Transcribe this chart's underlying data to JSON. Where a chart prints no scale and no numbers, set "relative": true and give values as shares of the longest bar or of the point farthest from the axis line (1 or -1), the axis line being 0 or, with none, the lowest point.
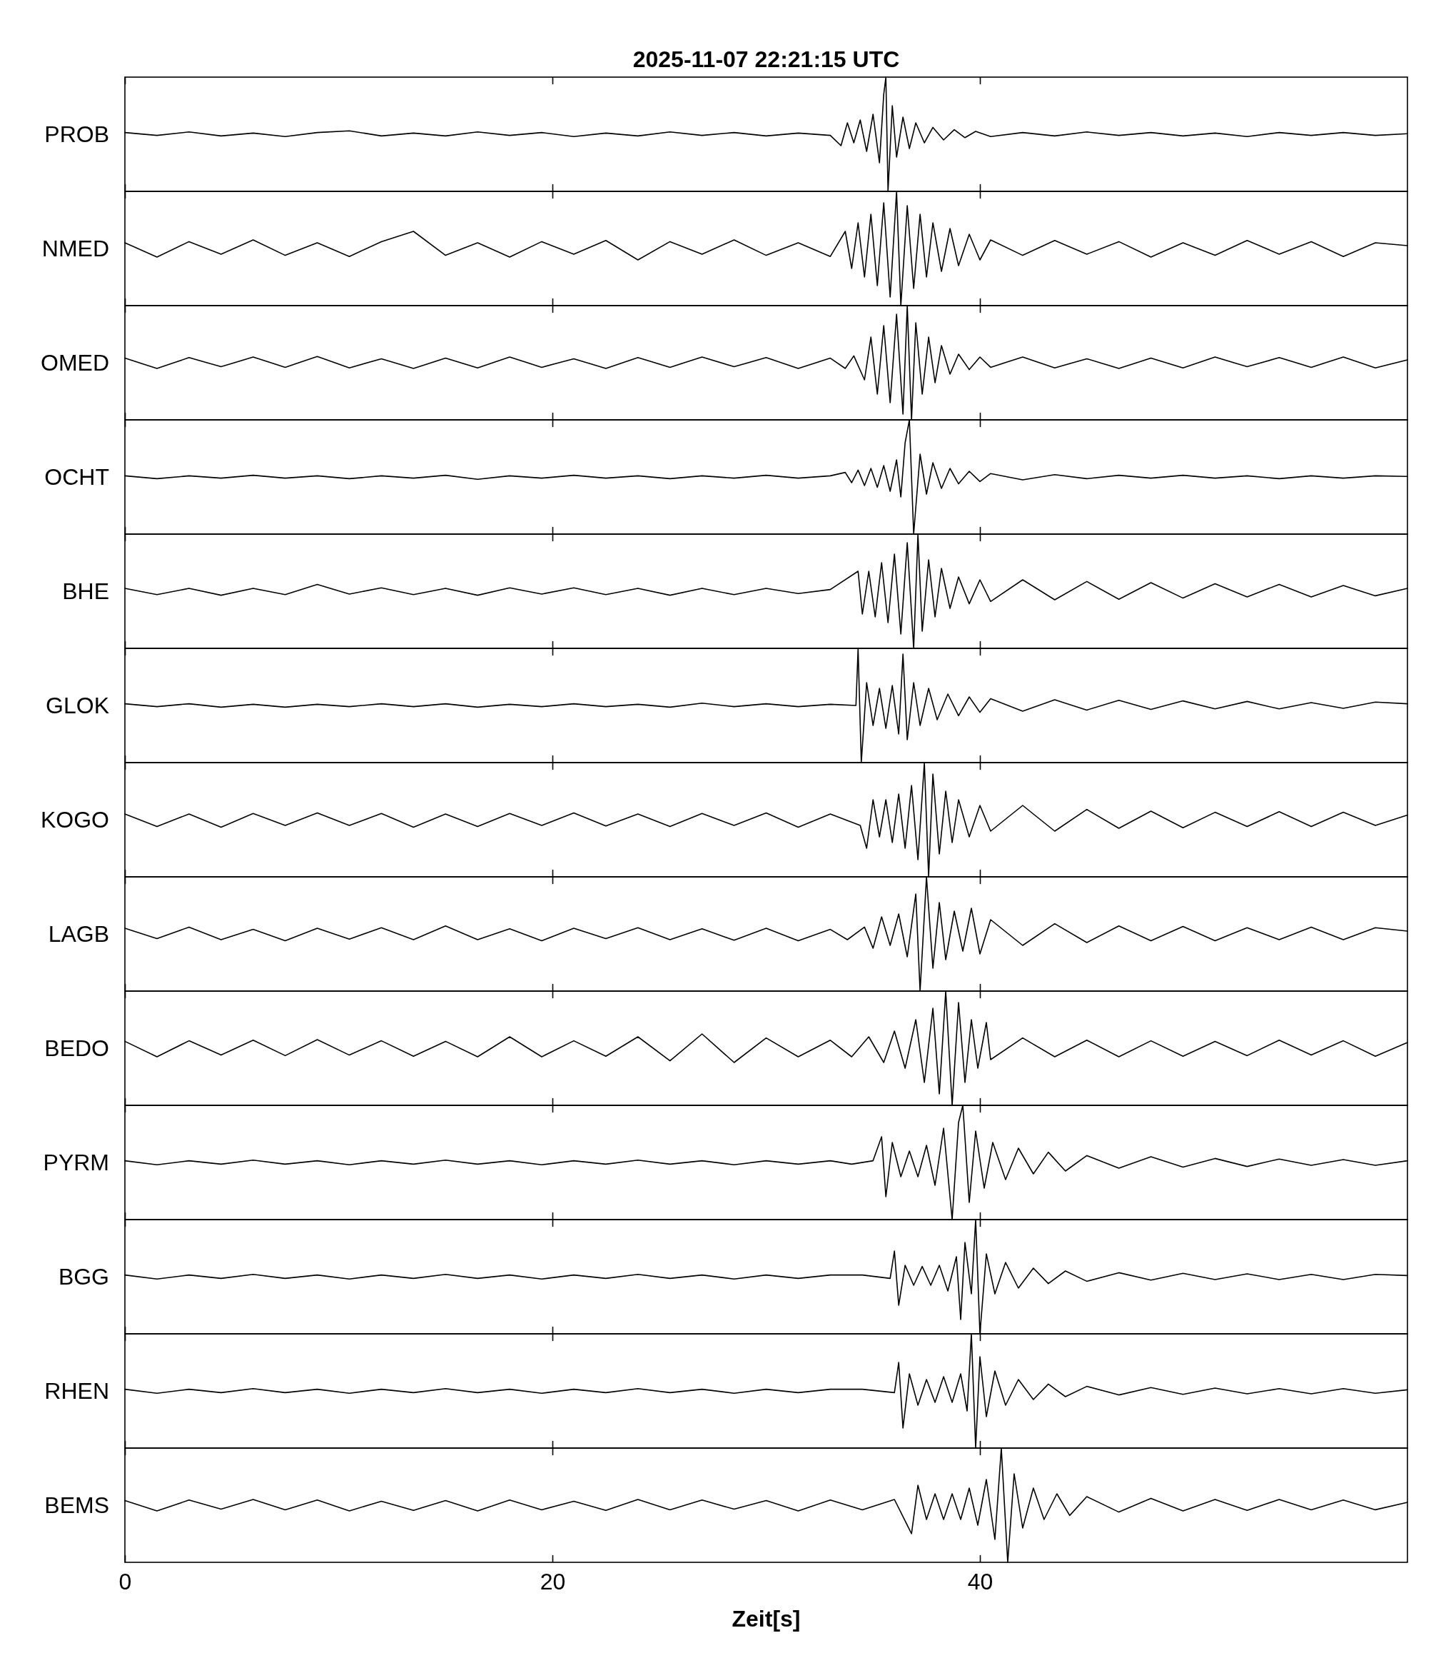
{
  "chart_data": [
    {
      "type": "line",
      "title": "2025-11-07  22:21:15 UTC",
      "ylabel": "PROB",
      "relative": true,
      "xlim": [
        0,
        60
      ],
      "xticks": [
        0,
        20,
        40
      ],
      "tick_labels": false,
      "color": "#000000",
      "x": [
        0,
        1.5,
        3,
        4.5,
        6,
        7.5,
        9,
        10.5,
        12,
        13.5,
        15,
        16.5,
        18,
        19.5,
        21,
        22.5,
        24,
        25.5,
        27,
        28.5,
        30,
        31.5,
        33,
        33.5,
        33.8,
        34.1,
        34.4,
        34.7,
        35,
        35.3,
        35.5,
        35.6,
        35.7,
        35.9,
        36.1,
        36.4,
        36.7,
        37,
        37.4,
        37.8,
        38.3,
        38.8,
        39.3,
        39.8,
        40.5,
        42,
        43.5,
        45,
        46.5,
        48,
        49.5,
        51,
        52.5,
        54,
        55.5,
        57,
        58.5,
        60
      ],
      "values": [
        0.515,
        0.49,
        0.52,
        0.485,
        0.51,
        0.48,
        0.515,
        0.53,
        0.485,
        0.51,
        0.485,
        0.52,
        0.49,
        0.515,
        0.48,
        0.51,
        0.485,
        0.52,
        0.49,
        0.515,
        0.485,
        0.51,
        0.49,
        0.4,
        0.6,
        0.425,
        0.625,
        0.35,
        0.675,
        0.25,
        0.85,
        1,
        0,
        0.75,
        0.3,
        0.65,
        0.375,
        0.6,
        0.425,
        0.56,
        0.45,
        0.54,
        0.47,
        0.525,
        0.48,
        0.515,
        0.485,
        0.52,
        0.49,
        0.515,
        0.485,
        0.51,
        0.48,
        0.515,
        0.49,
        0.515,
        0.49,
        0.505
      ]
    },
    {
      "type": "line",
      "ylabel": "NMED",
      "relative": true,
      "xlim": [
        0,
        60
      ],
      "xticks": [
        0,
        20,
        40
      ],
      "tick_labels": false,
      "color": "#000000",
      "x": [
        0,
        1.5,
        3,
        4.5,
        6,
        7.5,
        9,
        10.5,
        12,
        13.5,
        15,
        16.5,
        18,
        19.5,
        21,
        22.5,
        24,
        25.5,
        27,
        28.5,
        30,
        31.5,
        33,
        33.7,
        34,
        34.3,
        34.6,
        34.9,
        35.2,
        35.5,
        35.8,
        36.1,
        36.3,
        36.6,
        36.9,
        37.2,
        37.5,
        37.8,
        38.2,
        38.6,
        39,
        39.5,
        40,
        40.5,
        42,
        43.5,
        45,
        46.5,
        48,
        49.5,
        51,
        52.5,
        54,
        55.5,
        57,
        58.5,
        60
      ],
      "values": [
        0.55,
        0.425,
        0.56,
        0.45,
        0.575,
        0.44,
        0.55,
        0.43,
        0.56,
        0.65,
        0.44,
        0.55,
        0.425,
        0.56,
        0.45,
        0.57,
        0.4,
        0.56,
        0.45,
        0.575,
        0.44,
        0.55,
        0.43,
        0.65,
        0.325,
        0.725,
        0.25,
        0.8,
        0.175,
        0.9,
        0.075,
        1,
        0,
        0.875,
        0.15,
        0.8,
        0.25,
        0.725,
        0.3,
        0.675,
        0.35,
        0.625,
        0.4,
        0.575,
        0.44,
        0.57,
        0.45,
        0.56,
        0.425,
        0.55,
        0.44,
        0.57,
        0.45,
        0.56,
        0.43,
        0.55,
        0.525
      ]
    },
    {
      "type": "line",
      "ylabel": "OMED",
      "relative": true,
      "xlim": [
        0,
        60
      ],
      "xticks": [
        0,
        20,
        40
      ],
      "tick_labels": false,
      "color": "#000000",
      "x": [
        0,
        1.5,
        3,
        4.5,
        6,
        7.5,
        9,
        10.5,
        12,
        13.5,
        15,
        16.5,
        18,
        19.5,
        21,
        22.5,
        24,
        25.5,
        27,
        28.5,
        30,
        31.5,
        33,
        33.7,
        34.1,
        34.6,
        34.9,
        35.2,
        35.5,
        35.8,
        36.1,
        36.4,
        36.6,
        36.8,
        37,
        37.3,
        37.6,
        37.9,
        38.2,
        38.6,
        39,
        39.5,
        40,
        40.5,
        42,
        43.5,
        45,
        46.5,
        48,
        49.5,
        51,
        52.5,
        54,
        55.5,
        57,
        58.5,
        60
      ],
      "values": [
        0.54,
        0.45,
        0.545,
        0.465,
        0.55,
        0.46,
        0.555,
        0.455,
        0.535,
        0.45,
        0.54,
        0.455,
        0.55,
        0.46,
        0.535,
        0.45,
        0.545,
        0.46,
        0.55,
        0.465,
        0.545,
        0.45,
        0.54,
        0.45,
        0.56,
        0.35,
        0.725,
        0.225,
        0.825,
        0.15,
        0.925,
        0.05,
        1,
        0,
        0.85,
        0.225,
        0.725,
        0.325,
        0.65,
        0.4,
        0.575,
        0.44,
        0.55,
        0.46,
        0.55,
        0.455,
        0.535,
        0.45,
        0.54,
        0.455,
        0.55,
        0.465,
        0.545,
        0.46,
        0.55,
        0.455,
        0.525
      ]
    },
    {
      "type": "line",
      "ylabel": "OCHT",
      "relative": true,
      "xlim": [
        0,
        60
      ],
      "xticks": [
        0,
        20,
        40
      ],
      "tick_labels": false,
      "color": "#000000",
      "x": [
        0,
        1.5,
        3,
        4.5,
        6,
        7.5,
        9,
        10.5,
        12,
        13.5,
        15,
        16.5,
        18,
        19.5,
        21,
        22.5,
        24,
        25.5,
        27,
        28.5,
        30,
        31.5,
        33,
        33.7,
        34,
        34.3,
        34.6,
        34.9,
        35.2,
        35.5,
        35.8,
        36.1,
        36.3,
        36.5,
        36.7,
        36.9,
        37.2,
        37.5,
        37.8,
        38.2,
        38.6,
        39,
        39.5,
        40,
        40.5,
        42,
        43.5,
        45,
        46.5,
        48,
        49.5,
        51,
        52.5,
        54,
        55.5,
        57,
        58.5,
        60
      ],
      "values": [
        0.51,
        0.485,
        0.51,
        0.49,
        0.515,
        0.49,
        0.51,
        0.485,
        0.51,
        0.49,
        0.515,
        0.48,
        0.51,
        0.49,
        0.515,
        0.49,
        0.51,
        0.485,
        0.51,
        0.49,
        0.515,
        0.49,
        0.51,
        0.54,
        0.45,
        0.56,
        0.425,
        0.575,
        0.41,
        0.6,
        0.375,
        0.65,
        0.325,
        0.8,
        1,
        0,
        0.7,
        0.35,
        0.625,
        0.4,
        0.575,
        0.44,
        0.55,
        0.46,
        0.53,
        0.475,
        0.52,
        0.485,
        0.515,
        0.49,
        0.515,
        0.49,
        0.51,
        0.485,
        0.51,
        0.49,
        0.51,
        0.505
      ]
    },
    {
      "type": "line",
      "ylabel": "BHE",
      "relative": true,
      "xlim": [
        0,
        60
      ],
      "xticks": [
        0,
        20,
        40
      ],
      "tick_labels": false,
      "color": "#000000",
      "x": [
        0,
        1.5,
        3,
        4.5,
        6,
        7.5,
        9,
        10.5,
        12,
        13.5,
        15,
        16.5,
        18,
        19.5,
        21,
        22.5,
        24,
        25.5,
        27,
        28.5,
        30,
        31.5,
        33,
        34.3,
        34.5,
        34.8,
        35.1,
        35.4,
        35.7,
        36,
        36.3,
        36.6,
        36.9,
        37.1,
        37.3,
        37.6,
        37.9,
        38.2,
        38.6,
        39,
        39.5,
        40,
        40.5,
        42,
        43.5,
        45,
        46.5,
        48,
        49.5,
        51,
        52.5,
        54,
        55.5,
        57,
        58.5,
        60
      ],
      "values": [
        0.525,
        0.47,
        0.525,
        0.465,
        0.525,
        0.47,
        0.56,
        0.475,
        0.53,
        0.47,
        0.525,
        0.465,
        0.53,
        0.475,
        0.53,
        0.47,
        0.525,
        0.465,
        0.525,
        0.47,
        0.525,
        0.48,
        0.515,
        0.675,
        0.3,
        0.675,
        0.275,
        0.75,
        0.225,
        0.825,
        0.125,
        0.925,
        0,
        1,
        0.15,
        0.775,
        0.275,
        0.7,
        0.35,
        0.625,
        0.39,
        0.6,
        0.41,
        0.6,
        0.425,
        0.585,
        0.43,
        0.575,
        0.44,
        0.565,
        0.45,
        0.56,
        0.45,
        0.55,
        0.46,
        0.525
      ]
    },
    {
      "type": "line",
      "ylabel": "GLOK",
      "relative": true,
      "xlim": [
        0,
        60
      ],
      "xticks": [
        0,
        20,
        40
      ],
      "tick_labels": false,
      "color": "#000000",
      "x": [
        0,
        1.5,
        3,
        4.5,
        6,
        7.5,
        9,
        10.5,
        12,
        13.5,
        15,
        16.5,
        18,
        19.5,
        21,
        22.5,
        24,
        25.5,
        27,
        28.5,
        30,
        31.5,
        33,
        34.2,
        34.3,
        34.45,
        34.7,
        35,
        35.3,
        35.6,
        35.9,
        36.2,
        36.4,
        36.6,
        36.9,
        37.2,
        37.6,
        38,
        38.5,
        39,
        39.5,
        40,
        40.5,
        42,
        43.5,
        45,
        46.5,
        48,
        49.5,
        51,
        52.5,
        54,
        55.5,
        57,
        58.5,
        60
      ],
      "values": [
        0.515,
        0.49,
        0.515,
        0.485,
        0.51,
        0.485,
        0.51,
        0.49,
        0.515,
        0.49,
        0.515,
        0.485,
        0.51,
        0.49,
        0.515,
        0.49,
        0.51,
        0.485,
        0.52,
        0.49,
        0.515,
        0.49,
        0.51,
        0.5,
        1,
        0,
        0.7,
        0.325,
        0.65,
        0.3,
        0.675,
        0.25,
        0.95,
        0.2,
        0.7,
        0.325,
        0.65,
        0.375,
        0.6,
        0.41,
        0.575,
        0.44,
        0.56,
        0.45,
        0.55,
        0.46,
        0.545,
        0.465,
        0.54,
        0.47,
        0.535,
        0.47,
        0.525,
        0.475,
        0.53,
        0.515
      ]
    },
    {
      "type": "line",
      "ylabel": "KOGO",
      "relative": true,
      "xlim": [
        0,
        60
      ],
      "xticks": [
        0,
        20,
        40
      ],
      "tick_labels": false,
      "color": "#000000",
      "x": [
        0,
        1.5,
        3,
        4.5,
        6,
        7.5,
        9,
        10.5,
        12,
        13.5,
        15,
        16.5,
        18,
        19.5,
        21,
        22.5,
        24,
        25.5,
        27,
        28.5,
        30,
        31.5,
        33,
        34.4,
        34.7,
        35,
        35.3,
        35.6,
        35.9,
        36.2,
        36.5,
        36.8,
        37.1,
        37.4,
        37.6,
        37.8,
        38.1,
        38.4,
        38.7,
        39,
        39.5,
        40,
        40.5,
        42,
        43.5,
        45,
        46.5,
        48,
        49.5,
        51,
        52.5,
        54,
        55.5,
        57,
        58.5,
        60
      ],
      "values": [
        0.55,
        0.44,
        0.55,
        0.435,
        0.555,
        0.45,
        0.56,
        0.45,
        0.555,
        0.435,
        0.55,
        0.44,
        0.555,
        0.45,
        0.56,
        0.445,
        0.55,
        0.44,
        0.555,
        0.45,
        0.56,
        0.435,
        0.55,
        0.45,
        0.25,
        0.675,
        0.35,
        0.675,
        0.3,
        0.725,
        0.25,
        0.8,
        0.15,
        1,
        0,
        0.9,
        0.2,
        0.75,
        0.3,
        0.675,
        0.35,
        0.625,
        0.4,
        0.625,
        0.4,
        0.59,
        0.425,
        0.575,
        0.43,
        0.565,
        0.44,
        0.57,
        0.44,
        0.565,
        0.45,
        0.54
      ]
    },
    {
      "type": "line",
      "ylabel": "LAGB",
      "relative": true,
      "xlim": [
        0,
        60
      ],
      "xticks": [
        0,
        20,
        40
      ],
      "tick_labels": false,
      "color": "#000000",
      "x": [
        0,
        1.5,
        3,
        4.5,
        6,
        7.5,
        9,
        10.5,
        12,
        13.5,
        15,
        16.5,
        18,
        19.5,
        21,
        22.5,
        24,
        25.5,
        27,
        28.5,
        30,
        31.5,
        33,
        33.8,
        34.6,
        35,
        35.4,
        35.8,
        36.2,
        36.6,
        37,
        37.2,
        37.5,
        37.8,
        38.1,
        38.4,
        38.8,
        39.2,
        39.6,
        40,
        40.5,
        42,
        43.5,
        45,
        46.5,
        48,
        49.5,
        51,
        52.5,
        54,
        55.5,
        57,
        58.5,
        60
      ],
      "values": [
        0.55,
        0.46,
        0.56,
        0.45,
        0.54,
        0.44,
        0.55,
        0.455,
        0.555,
        0.45,
        0.57,
        0.45,
        0.545,
        0.44,
        0.55,
        0.46,
        0.555,
        0.45,
        0.545,
        0.445,
        0.55,
        0.44,
        0.54,
        0.45,
        0.56,
        0.375,
        0.65,
        0.4,
        0.675,
        0.3,
        0.85,
        0,
        1,
        0.2,
        0.775,
        0.275,
        0.7,
        0.35,
        0.725,
        0.325,
        0.625,
        0.4,
        0.59,
        0.425,
        0.57,
        0.44,
        0.565,
        0.44,
        0.555,
        0.45,
        0.56,
        0.45,
        0.555,
        0.525
      ]
    },
    {
      "type": "line",
      "ylabel": "BEDO",
      "relative": true,
      "xlim": [
        0,
        60
      ],
      "xticks": [
        0,
        20,
        40
      ],
      "tick_labels": false,
      "color": "#000000",
      "x": [
        0,
        1.5,
        3,
        4.5,
        6,
        7.5,
        9,
        10.5,
        12,
        13.5,
        15,
        16.5,
        18,
        19.5,
        21,
        22.5,
        24,
        25.5,
        27,
        28.5,
        30,
        31.5,
        33,
        34,
        34.8,
        35.5,
        36,
        36.5,
        37,
        37.4,
        37.8,
        38.1,
        38.4,
        38.7,
        39,
        39.3,
        39.6,
        39.9,
        40.3,
        40.5,
        42,
        43.5,
        45,
        46.5,
        48,
        49.5,
        51,
        52.5,
        54,
        55.5,
        57,
        58.5,
        60
      ],
      "values": [
        0.56,
        0.425,
        0.565,
        0.44,
        0.57,
        0.435,
        0.575,
        0.44,
        0.565,
        0.43,
        0.56,
        0.425,
        0.6,
        0.425,
        0.565,
        0.43,
        0.6,
        0.39,
        0.625,
        0.375,
        0.59,
        0.425,
        0.57,
        0.425,
        0.6,
        0.375,
        0.65,
        0.325,
        0.75,
        0.2,
        0.85,
        0.1,
        1,
        0,
        0.9,
        0.2,
        0.75,
        0.325,
        0.725,
        0.4,
        0.59,
        0.425,
        0.57,
        0.425,
        0.565,
        0.43,
        0.56,
        0.435,
        0.57,
        0.44,
        0.565,
        0.43,
        0.55
      ]
    },
    {
      "type": "line",
      "ylabel": "PYRM",
      "relative": true,
      "xlim": [
        0,
        60
      ],
      "xticks": [
        0,
        20,
        40
      ],
      "tick_labels": false,
      "color": "#000000",
      "x": [
        0,
        1.5,
        3,
        4.5,
        6,
        7.5,
        9,
        10.5,
        12,
        13.5,
        15,
        16.5,
        18,
        19.5,
        21,
        22.5,
        24,
        25.5,
        27,
        28.5,
        30,
        31.5,
        33,
        34,
        35,
        35.4,
        35.6,
        35.9,
        36.3,
        36.7,
        37.1,
        37.5,
        37.9,
        38.3,
        38.7,
        39,
        39.2,
        39.5,
        39.8,
        40.2,
        40.6,
        41.2,
        41.8,
        42.5,
        43.2,
        44,
        45,
        46.5,
        48,
        49.5,
        51,
        52.5,
        54,
        55.5,
        57,
        58.5,
        60
      ],
      "values": [
        0.515,
        0.48,
        0.515,
        0.485,
        0.52,
        0.485,
        0.515,
        0.48,
        0.515,
        0.485,
        0.52,
        0.485,
        0.515,
        0.48,
        0.515,
        0.485,
        0.52,
        0.485,
        0.515,
        0.48,
        0.515,
        0.485,
        0.515,
        0.485,
        0.515,
        0.725,
        0.2,
        0.675,
        0.375,
        0.6,
        0.375,
        0.65,
        0.3,
        0.8,
        0,
        0.85,
        1,
        0.15,
        0.775,
        0.275,
        0.675,
        0.35,
        0.625,
        0.4,
        0.59,
        0.425,
        0.56,
        0.45,
        0.55,
        0.46,
        0.535,
        0.465,
        0.53,
        0.475,
        0.525,
        0.475,
        0.515
      ]
    },
    {
      "type": "line",
      "ylabel": "BGG",
      "relative": true,
      "xlim": [
        0,
        60
      ],
      "xticks": [
        0,
        20,
        40
      ],
      "tick_labels": false,
      "color": "#000000",
      "x": [
        0,
        1.5,
        3,
        4.5,
        6,
        7.5,
        9,
        10.5,
        12,
        13.5,
        15,
        16.5,
        18,
        19.5,
        21,
        22.5,
        24,
        25.5,
        27,
        28.5,
        30,
        31.5,
        33,
        34.5,
        35.8,
        36,
        36.2,
        36.5,
        36.9,
        37.3,
        37.7,
        38.1,
        38.5,
        38.9,
        39.1,
        39.3,
        39.6,
        39.8,
        40,
        40.3,
        40.7,
        41.2,
        41.8,
        42.5,
        43.2,
        44,
        45,
        46.5,
        48,
        49.5,
        51,
        52.5,
        54,
        55.5,
        57,
        58.5,
        60
      ],
      "values": [
        0.515,
        0.48,
        0.515,
        0.485,
        0.52,
        0.485,
        0.515,
        0.48,
        0.515,
        0.485,
        0.52,
        0.485,
        0.515,
        0.48,
        0.515,
        0.485,
        0.52,
        0.485,
        0.515,
        0.48,
        0.515,
        0.485,
        0.515,
        0.515,
        0.485,
        0.725,
        0.25,
        0.6,
        0.425,
        0.59,
        0.425,
        0.6,
        0.375,
        0.675,
        0.125,
        0.8,
        0.35,
        1,
        0,
        0.7,
        0.35,
        0.625,
        0.4,
        0.575,
        0.44,
        0.55,
        0.46,
        0.535,
        0.47,
        0.53,
        0.475,
        0.525,
        0.475,
        0.52,
        0.475,
        0.52,
        0.51
      ]
    },
    {
      "type": "line",
      "ylabel": "RHEN",
      "relative": true,
      "xlim": [
        0,
        60
      ],
      "xticks": [
        0,
        20,
        40
      ],
      "tick_labels": false,
      "color": "#000000",
      "x": [
        0,
        1.5,
        3,
        4.5,
        6,
        7.5,
        9,
        10.5,
        12,
        13.5,
        15,
        16.5,
        18,
        19.5,
        21,
        22.5,
        24,
        25.5,
        27,
        28.5,
        30,
        31.5,
        33,
        34.5,
        36,
        36.2,
        36.4,
        36.7,
        37.1,
        37.5,
        37.9,
        38.3,
        38.7,
        39.1,
        39.4,
        39.6,
        39.8,
        40,
        40.3,
        40.7,
        41.2,
        41.8,
        42.5,
        43.2,
        44,
        45,
        46.5,
        48,
        49.5,
        51,
        52.5,
        54,
        55.5,
        57,
        58.5,
        60
      ],
      "values": [
        0.515,
        0.48,
        0.515,
        0.485,
        0.52,
        0.485,
        0.515,
        0.48,
        0.515,
        0.485,
        0.52,
        0.485,
        0.515,
        0.48,
        0.515,
        0.485,
        0.52,
        0.485,
        0.515,
        0.48,
        0.515,
        0.485,
        0.515,
        0.515,
        0.485,
        0.75,
        0.175,
        0.65,
        0.375,
        0.6,
        0.4,
        0.625,
        0.4,
        0.65,
        0.325,
        1,
        0,
        0.8,
        0.275,
        0.675,
        0.375,
        0.6,
        0.425,
        0.56,
        0.45,
        0.54,
        0.465,
        0.53,
        0.47,
        0.525,
        0.475,
        0.52,
        0.475,
        0.52,
        0.48,
        0.51
      ]
    },
    {
      "type": "line",
      "ylabel": "BEMS",
      "xlabel": "Zeit[s]",
      "relative": true,
      "xlim": [
        0,
        60
      ],
      "xticks": [
        0,
        20,
        40
      ],
      "tick_labels": "x",
      "color": "#000000",
      "x": [
        0,
        1.5,
        3,
        4.5,
        6,
        7.5,
        9,
        10.5,
        12,
        13.5,
        15,
        16.5,
        18,
        19.5,
        21,
        22.5,
        24,
        25.5,
        27,
        28.5,
        30,
        31.5,
        33,
        34.5,
        36,
        36.8,
        37.1,
        37.5,
        37.9,
        38.3,
        38.7,
        39.1,
        39.5,
        39.9,
        40.3,
        40.7,
        41,
        41.3,
        41.6,
        42,
        42.5,
        43,
        43.6,
        44.2,
        45,
        46.5,
        48,
        49.5,
        51,
        52.5,
        54,
        55.5,
        57,
        58.5,
        60
      ],
      "values": [
        0.54,
        0.45,
        0.545,
        0.465,
        0.55,
        0.46,
        0.545,
        0.45,
        0.535,
        0.455,
        0.54,
        0.45,
        0.545,
        0.46,
        0.535,
        0.455,
        0.55,
        0.46,
        0.545,
        0.465,
        0.54,
        0.45,
        0.545,
        0.46,
        0.55,
        0.25,
        0.675,
        0.375,
        0.6,
        0.375,
        0.6,
        0.375,
        0.65,
        0.325,
        0.725,
        0.2,
        1,
        0,
        0.775,
        0.3,
        0.65,
        0.375,
        0.6,
        0.41,
        0.575,
        0.44,
        0.56,
        0.45,
        0.55,
        0.455,
        0.55,
        0.46,
        0.545,
        0.46,
        0.525
      ]
    }
  ]
}
